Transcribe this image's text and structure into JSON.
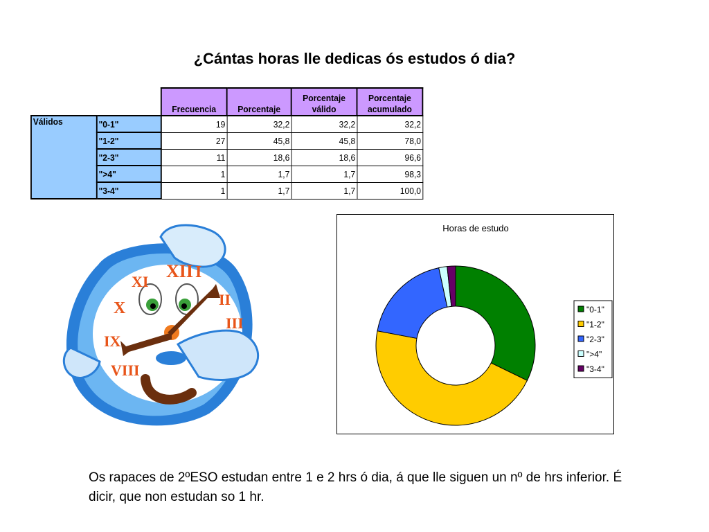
{
  "title": "¿Cántas horas lle dedicas ós estudos ó dia?",
  "table": {
    "headers": [
      "Frecuencia",
      "Porcentaje",
      "Porcentaje válido",
      "Porcentaje acumulado"
    ],
    "group_label": "Válidos",
    "rows": [
      {
        "label": "\"0-1\"",
        "freq": "19",
        "pct": "32,2",
        "valid": "32,2",
        "cum": "32,2"
      },
      {
        "label": "\"1-2\"",
        "freq": "27",
        "pct": "45,8",
        "valid": "45,8",
        "cum": "78,0"
      },
      {
        "label": "\"2-3\"",
        "freq": "11",
        "pct": "18,6",
        "valid": "18,6",
        "cum": "96,6"
      },
      {
        "label": "\">4\"",
        "freq": "1",
        "pct": "1,7",
        "valid": "1,7",
        "cum": "98,3"
      },
      {
        "label": "\"3-4\"",
        "freq": "1",
        "pct": "1,7",
        "valid": "1,7",
        "cum": "100,0"
      }
    ]
  },
  "chart_data": {
    "type": "pie",
    "title": "Horas de estudo",
    "categories": [
      "\"0-1\"",
      "\"1-2\"",
      "\"2-3\"",
      "\">4\"",
      "\"3-4\""
    ],
    "values": [
      19,
      27,
      11,
      1,
      1
    ],
    "colors": [
      "#008000",
      "#ffcc00",
      "#3366ff",
      "#ccffff",
      "#660066"
    ],
    "legend_position": "right"
  },
  "clipart": {
    "numerals": [
      "XII",
      "I",
      "II",
      "III",
      "IX",
      "X",
      "XI",
      "VIII"
    ]
  },
  "caption": "Os rapaces de 2ºESO estudan entre 1 e 2 hrs ó dia, á que lle siguen un nº de hrs inferior. É dicir, que non estudan so 1 hr."
}
